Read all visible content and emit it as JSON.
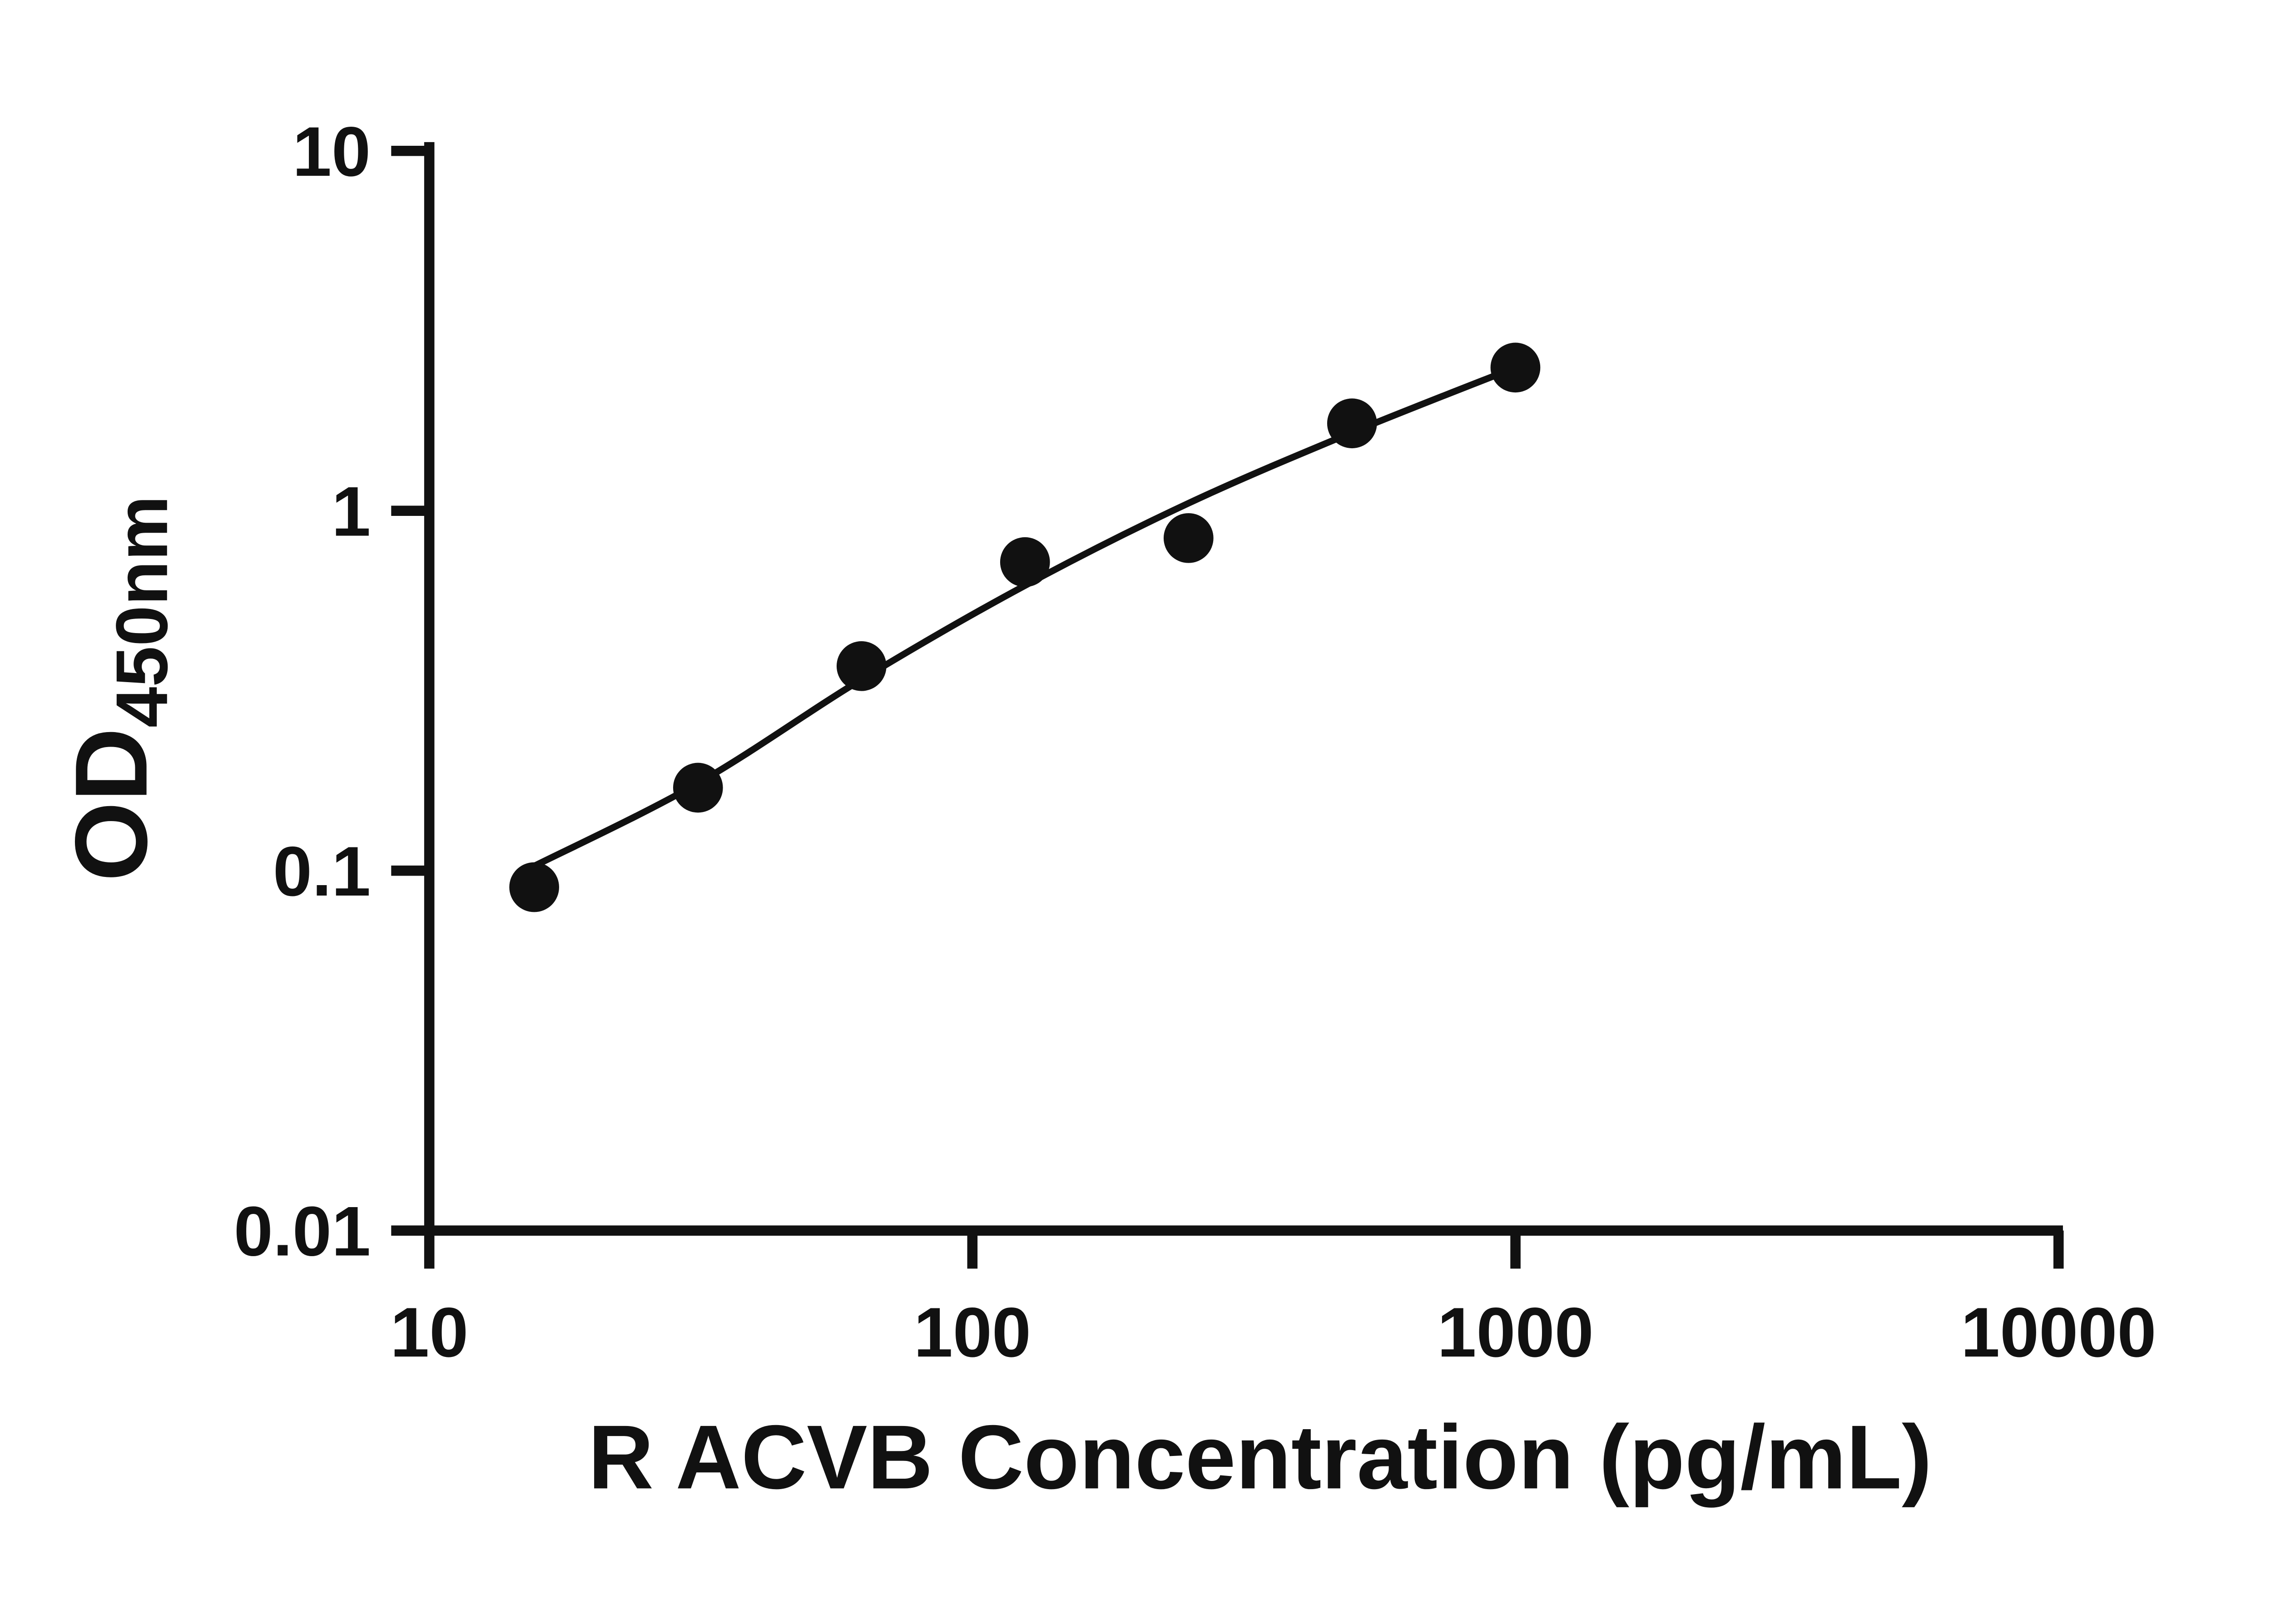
{
  "chart_data": {
    "type": "scatter",
    "title": "",
    "xlabel": "R ACVB Concentration (pg/mL)",
    "ylabel_main": "OD",
    "ylabel_sub": "450nm",
    "x_scale": "log",
    "y_scale": "log",
    "xlim": [
      10,
      10000
    ],
    "ylim": [
      0.01,
      10
    ],
    "grid": false,
    "legend": false,
    "x_ticks": [
      10,
      100,
      1000,
      10000
    ],
    "x_tick_labels": [
      "10",
      "100",
      "1000",
      "10000"
    ],
    "y_ticks": [
      0.01,
      0.1,
      1,
      10
    ],
    "y_tick_labels": [
      "0.01",
      "0.1",
      "1",
      "10"
    ],
    "points": [
      {
        "x": 15.6,
        "y": 0.09
      },
      {
        "x": 31.25,
        "y": 0.17
      },
      {
        "x": 62.5,
        "y": 0.37
      },
      {
        "x": 125,
        "y": 0.72
      },
      {
        "x": 250,
        "y": 0.84
      },
      {
        "x": 500,
        "y": 1.75
      },
      {
        "x": 1000,
        "y": 2.5
      }
    ],
    "fit_curve": [
      {
        "x": 15.6,
        "y": 0.103
      },
      {
        "x": 31.25,
        "y": 0.175
      },
      {
        "x": 62.5,
        "y": 0.34
      },
      {
        "x": 125,
        "y": 0.62
      },
      {
        "x": 250,
        "y": 1.05
      },
      {
        "x": 500,
        "y": 1.65
      },
      {
        "x": 1000,
        "y": 2.5
      }
    ],
    "colors": {
      "axis": "#111111",
      "curve": "#111111",
      "point": "#111111",
      "background": "#ffffff"
    }
  }
}
